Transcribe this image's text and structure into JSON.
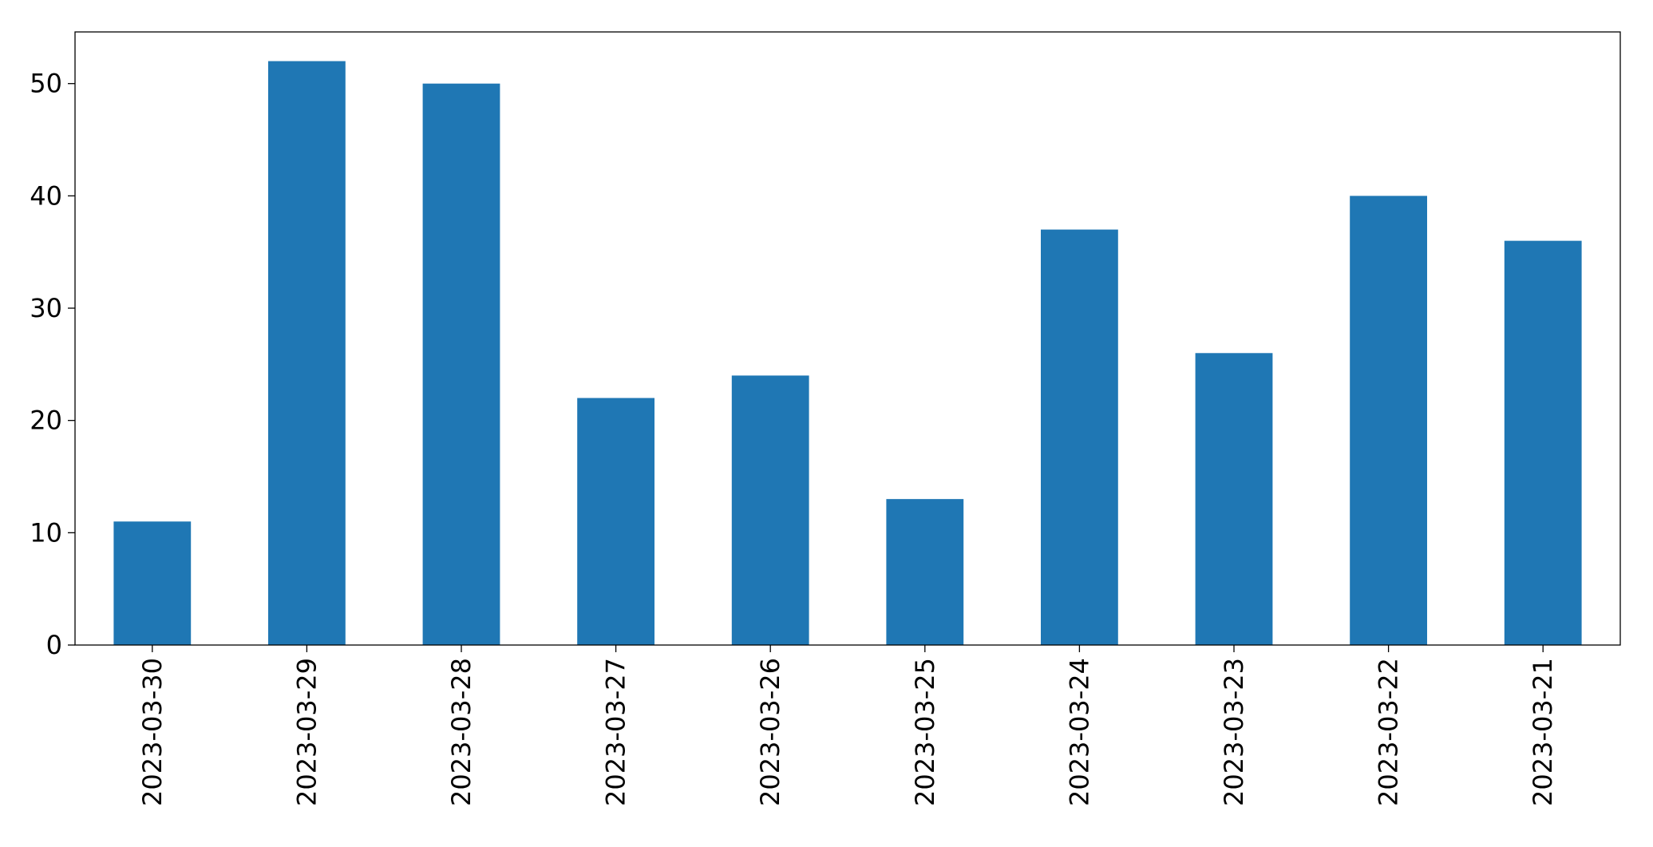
{
  "chart_data": {
    "type": "bar",
    "categories": [
      "2023-03-30",
      "2023-03-29",
      "2023-03-28",
      "2023-03-27",
      "2023-03-26",
      "2023-03-25",
      "2023-03-24",
      "2023-03-23",
      "2023-03-22",
      "2023-03-21"
    ],
    "values": [
      11,
      52,
      50,
      22,
      24,
      13,
      37,
      26,
      40,
      36
    ],
    "color": "#1f77b4",
    "ylim": [
      0,
      54.6
    ],
    "yticks": [
      0,
      10,
      20,
      30,
      40,
      50
    ],
    "grid": false
  }
}
